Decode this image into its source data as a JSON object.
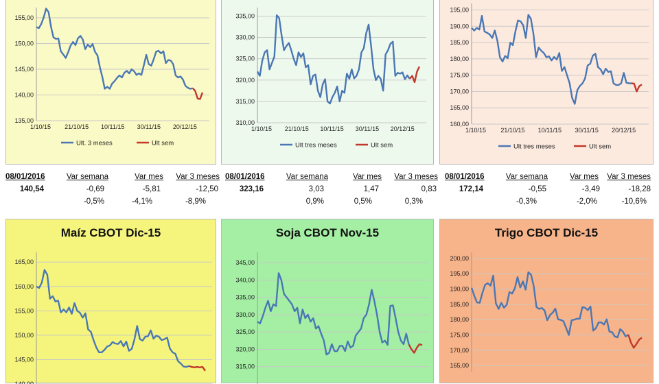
{
  "colors": {
    "series_main": "#4a77b4",
    "series_week": "#c0392b",
    "grid": "#c8c8c8",
    "bg_yellow": "#fafac6",
    "bg_mint": "#eef9ee",
    "bg_peach": "#fdeadf",
    "bg_yellow_strong": "#f5f57e",
    "bg_green_strong": "#a4efa4",
    "bg_orange_strong": "#f7b48a"
  },
  "stats": [
    {
      "date": "08/01/2016",
      "price": "140,54",
      "headers": [
        "Var semana",
        "Var mes",
        "Var 3 meses"
      ],
      "abs": [
        "-0,69",
        "-5,81",
        "-12,50"
      ],
      "pct": [
        "-0,5%",
        "-4,1%",
        "-8,9%"
      ]
    },
    {
      "date": "08/01/2016",
      "price": "323,16",
      "headers": [
        "Var semana",
        "Var mes",
        "Var 3 meses"
      ],
      "abs": [
        "3,03",
        "1,47",
        "0,83"
      ],
      "pct": [
        "0,9%",
        "0,5%",
        "0,3%"
      ]
    },
    {
      "date": "08/01/2016",
      "price": "172,14",
      "headers": [
        "Var semana",
        "Var mes",
        "Var 3 meses"
      ],
      "abs": [
        "-0,55",
        "-3,49",
        "-18,28"
      ],
      "pct": [
        "-0,3%",
        "-2,0%",
        "-10,6%"
      ]
    }
  ],
  "chart_data": [
    {
      "type": "line",
      "title": "",
      "ylim": [
        135,
        157
      ],
      "yticks": [
        "135,00",
        "140,00",
        "145,00",
        "150,00",
        "155,00"
      ],
      "x_labels": [
        "1/10/15",
        "21/10/15",
        "10/11/15",
        "30/11/15",
        "20/12/15"
      ],
      "legend": [
        "Ult. 3 meses",
        "Ult sem"
      ],
      "series": [
        {
          "name": "Ult. 3 meses",
          "values": [
            153.2,
            153,
            153.8,
            155.1,
            156.8,
            156.1,
            153.2,
            151.2,
            150.9,
            151,
            148.5,
            147.9,
            147.2,
            148.3,
            149.6,
            150.3,
            149.7,
            151,
            151.5,
            150.8,
            148.9,
            149.8,
            149.3,
            149.9,
            148.4,
            147.7,
            145.4,
            143.5,
            141.2,
            141.6,
            141.2,
            142.2,
            142.7,
            143.3,
            143.8,
            143.4,
            144.3,
            144.7,
            144.2,
            145,
            144.6,
            143.9,
            144.2,
            143.9,
            145.8,
            147.8,
            146,
            145.7,
            146.9,
            148.4,
            148.6,
            148.1,
            148.5,
            146.2,
            146.8,
            146.7,
            146,
            143.8,
            143.4,
            143.6,
            143,
            141.8,
            141.4,
            141.2,
            141.3
          ]
        },
        {
          "name": "Ult sem",
          "values": [
            141.3,
            140.8,
            139.3,
            139.2,
            140.5
          ]
        }
      ]
    },
    {
      "type": "line",
      "title": "",
      "ylim": [
        310,
        337
      ],
      "yticks": [
        "310,00",
        "315,00",
        "320,00",
        "325,00",
        "330,00",
        "335,00"
      ],
      "x_labels": [
        "1/10/15",
        "21/10/15",
        "10/11/15",
        "30/11/15",
        "20/12/15"
      ],
      "legend": [
        "Ult tres meses",
        "Ult sem"
      ],
      "series": [
        {
          "name": "Ult tres meses",
          "values": [
            322,
            321,
            324.5,
            326.5,
            327,
            322.5,
            324,
            325.5,
            335.2,
            334.5,
            330.5,
            327,
            328,
            328.7,
            327,
            325,
            323.5,
            326.5,
            325.4,
            326.3,
            323,
            323.5,
            319,
            321,
            321.3,
            317.5,
            316,
            319,
            320.2,
            315,
            314.5,
            316,
            317,
            318.5,
            315,
            317.5,
            317,
            321.5,
            320.3,
            322.5,
            320.4,
            321,
            322.5,
            326.5,
            327.5,
            331,
            333,
            328,
            322.5,
            320,
            321,
            320.3,
            317.5,
            326,
            327,
            328.5,
            329,
            321,
            321.7,
            321.5,
            321.8,
            320.2,
            321.1,
            320.3
          ]
        },
        {
          "name": "Ult sem",
          "values": [
            320.3,
            321,
            319.5,
            322,
            323.16
          ]
        }
      ]
    },
    {
      "type": "line",
      "title": "",
      "ylim": [
        160,
        197
      ],
      "yticks": [
        "160,00",
        "165,00",
        "170,00",
        "175,00",
        "180,00",
        "185,00",
        "190,00",
        "195,00"
      ],
      "x_labels": [
        "1/10/15",
        "21/10/15",
        "10/11/15",
        "30/11/15",
        "20/12/15"
      ],
      "legend": [
        "Ult tres meses",
        "Ult sem"
      ],
      "series": [
        {
          "name": "Ult tres meses",
          "values": [
            189.5,
            188.7,
            189.5,
            189,
            193.2,
            188.4,
            188,
            187.5,
            186.4,
            188.7,
            185.5,
            180.5,
            179.2,
            180.9,
            180.2,
            185,
            184.2,
            188.5,
            191.8,
            191.5,
            190.3,
            186.4,
            193.5,
            192.3,
            187.5,
            180.5,
            183.5,
            182.5,
            181.8,
            180.5,
            180.8,
            179.5,
            180.6,
            179.8,
            181.8,
            176.3,
            177.5,
            175,
            172.5,
            168,
            166.2,
            170.5,
            171.7,
            172.5,
            174,
            178,
            178.5,
            181,
            181.6,
            177.5,
            176.8,
            175.3,
            177,
            176,
            176.2,
            172.5,
            172,
            172,
            172.5,
            175.7,
            172.7,
            172.5,
            172.5
          ]
        },
        {
          "name": "Ult sem",
          "values": [
            172.5,
            172.4,
            170,
            171.6,
            172.14
          ]
        }
      ]
    },
    {
      "type": "line",
      "title": "Maíz CBOT Dic-15",
      "ylim": [
        140,
        167
      ],
      "yticks": [
        "140,00",
        "145,00",
        "150,00",
        "155,00",
        "160,00",
        "165,00"
      ],
      "series": [
        {
          "name": "",
          "values": [
            160,
            159.7,
            160.8,
            163.4,
            162.4,
            157.5,
            158,
            156.9,
            157.1,
            154.7,
            155.3,
            154.7,
            155.7,
            154.4,
            156.6,
            155,
            154.6,
            153.6,
            154.5,
            151.2,
            150.7,
            149,
            147.5,
            146.5,
            146.5,
            147,
            147.7,
            147.9,
            148.6,
            148.3,
            148.2,
            148.8,
            147.7,
            148.7,
            146.8,
            147.2,
            149.1,
            151.9,
            149.2,
            148.9,
            149.7,
            149.8,
            151,
            149.3,
            149.9,
            149.7,
            149,
            149.2,
            149.5,
            147.3,
            146.5,
            146.2,
            144.7,
            144.2,
            143.6,
            143.5,
            143.7
          ]
        },
        {
          "name": "",
          "values": [
            143.7,
            143.5,
            143.4,
            143.5,
            143.4,
            143.5,
            142.7
          ]
        }
      ]
    },
    {
      "type": "line",
      "title": "Soja CBOT Nov-15",
      "ylim": [
        310,
        348
      ],
      "yticks": [
        "315,00",
        "320,00",
        "325,00",
        "330,00",
        "335,00",
        "340,00",
        "345,00"
      ],
      "series": [
        {
          "name": "",
          "values": [
            328,
            327.5,
            329.5,
            332,
            334,
            331,
            333,
            332.5,
            342,
            340,
            336,
            335,
            334,
            333,
            331,
            332,
            327.5,
            331.5,
            329,
            330,
            328,
            329,
            326,
            326.7,
            324.5,
            322.5,
            318.5,
            319,
            321.5,
            319.5,
            319.5,
            321,
            321,
            319.5,
            322.3,
            320.5,
            321,
            324,
            325,
            326,
            329,
            330,
            333,
            337.2,
            334,
            330,
            325,
            322,
            322.5,
            321.3,
            332.5,
            332.7,
            329,
            325,
            322.5,
            321.5,
            324.5,
            321.4
          ]
        },
        {
          "name": "",
          "values": [
            321.4,
            320,
            319,
            320.5,
            321.5,
            321.2
          ]
        }
      ]
    },
    {
      "type": "line",
      "title": "Trigo CBOT Dic-15",
      "ylim": [
        163,
        202
      ],
      "yticks": [
        "165,00",
        "170,00",
        "175,00",
        "180,00",
        "185,00",
        "190,00",
        "195,00",
        "200,00"
      ],
      "series": [
        {
          "name": "",
          "values": [
            190.4,
            187.8,
            185.6,
            185.5,
            188.7,
            191.4,
            191.9,
            191.1,
            194.4,
            185.3,
            183.5,
            185.5,
            183.9,
            184.9,
            189,
            188.5,
            190.2,
            193.9,
            190.5,
            192.5,
            189.8,
            195.5,
            194.7,
            191,
            184.1,
            183.5,
            183.8,
            183,
            179.8,
            181.5,
            182.3,
            183.6,
            180.1,
            179.9,
            179.5,
            177.2,
            175,
            179.8,
            180,
            180.3,
            180.3,
            184.1,
            183.9,
            183.1,
            184.3,
            176.4,
            177.2,
            179.1,
            179.1,
            178.4,
            180.1,
            176.1,
            175.9,
            174.5,
            174.2,
            176.9,
            176.1,
            174.5,
            175.1
          ]
        },
        {
          "name": "",
          "values": [
            175.1,
            172.4,
            170.8,
            172,
            173.5,
            174.1
          ]
        }
      ]
    }
  ]
}
